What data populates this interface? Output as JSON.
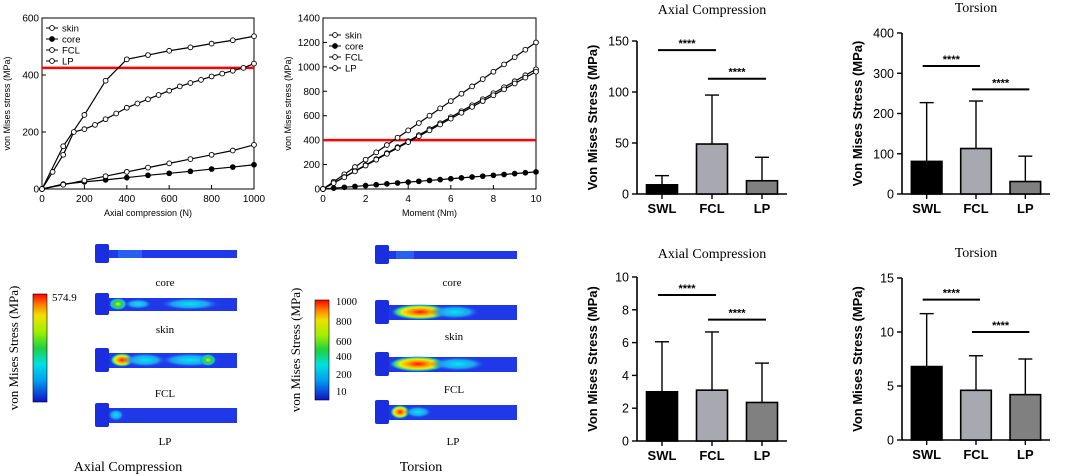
{
  "colors": {
    "red_line": "#ff0000",
    "black": "#000000",
    "bar_swl": "#000000",
    "bar_fcl": "#a8a8b0",
    "bar_lp": "#808080",
    "model_blue": "#1a2ee0"
  },
  "chart_data": [
    {
      "id": "line_axial",
      "type": "line",
      "xlabel": "Axial compression (N)",
      "ylabel": "von Mises stress (MPa)",
      "xlim": [
        0,
        1000
      ],
      "ylim": [
        0,
        600
      ],
      "xticks": [
        0,
        200,
        400,
        600,
        800,
        1000
      ],
      "yticks": [
        0,
        200,
        400,
        600
      ],
      "threshold": 425,
      "series": [
        {
          "name": "skin",
          "marker": "open",
          "x": [
            0,
            100,
            200,
            300,
            400,
            500,
            600,
            700,
            800,
            900,
            1000
          ],
          "y": [
            0,
            150,
            260,
            380,
            455,
            470,
            485,
            497,
            510,
            522,
            536
          ]
        },
        {
          "name": "core",
          "marker": "filled",
          "x": [
            0,
            100,
            200,
            300,
            400,
            500,
            600,
            700,
            800,
            900,
            1000
          ],
          "y": [
            0,
            17,
            25,
            32,
            40,
            48,
            55,
            62,
            70,
            77,
            85
          ]
        },
        {
          "name": "FCL",
          "marker": "open",
          "x": [
            0,
            100,
            200,
            300,
            400,
            500,
            600,
            700,
            800,
            900,
            1000
          ],
          "y": [
            0,
            15,
            30,
            45,
            60,
            75,
            90,
            105,
            120,
            135,
            155
          ]
        },
        {
          "name": "LP",
          "marker": "open",
          "x": [
            0,
            50,
            100,
            150,
            200,
            250,
            300,
            350,
            400,
            450,
            500,
            550,
            600,
            650,
            700,
            750,
            800,
            850,
            900,
            950,
            1000
          ],
          "y": [
            0,
            60,
            120,
            200,
            210,
            225,
            245,
            265,
            285,
            300,
            315,
            330,
            345,
            360,
            372,
            383,
            395,
            405,
            415,
            425,
            440
          ]
        }
      ]
    },
    {
      "id": "line_torsion",
      "type": "line",
      "xlabel": "Moment (Nm)",
      "ylabel": "von Mises stress (MPa)",
      "xlim": [
        0,
        10
      ],
      "ylim": [
        0,
        1400
      ],
      "xticks": [
        0,
        2,
        4,
        6,
        8,
        10
      ],
      "yticks": [
        0,
        200,
        400,
        600,
        800,
        1000,
        1200,
        1400
      ],
      "threshold": 400,
      "series": [
        {
          "name": "skin",
          "marker": "open",
          "x": [
            0,
            0.5,
            1,
            1.5,
            2,
            2.5,
            3,
            3.5,
            4,
            4.5,
            5,
            5.5,
            6,
            6.5,
            7,
            7.5,
            8,
            8.5,
            9,
            9.5,
            10
          ],
          "y": [
            0,
            60,
            120,
            180,
            240,
            300,
            360,
            420,
            480,
            540,
            600,
            660,
            720,
            780,
            840,
            900,
            960,
            1020,
            1080,
            1140,
            1200
          ]
        },
        {
          "name": "core",
          "marker": "filled",
          "x": [
            0,
            0.5,
            1,
            1.5,
            2,
            2.5,
            3,
            3.5,
            4,
            4.5,
            5,
            5.5,
            6,
            6.5,
            7,
            7.5,
            8,
            8.5,
            9,
            9.5,
            10
          ],
          "y": [
            0,
            7,
            14,
            21,
            28,
            35,
            42,
            49,
            56,
            63,
            70,
            77,
            84,
            91,
            98,
            105,
            112,
            119,
            126,
            133,
            140
          ]
        },
        {
          "name": "FCL",
          "marker": "open",
          "x": [
            0,
            0.5,
            1,
            1.5,
            2,
            2.5,
            3,
            3.5,
            4,
            4.5,
            5,
            5.5,
            6,
            6.5,
            7,
            7.5,
            8,
            8.5,
            9,
            9.5,
            10
          ],
          "y": [
            0,
            49,
            98,
            147,
            196,
            245,
            294,
            343,
            392,
            441,
            490,
            539,
            588,
            637,
            686,
            735,
            784,
            833,
            882,
            931,
            980
          ]
        },
        {
          "name": "LP",
          "marker": "open",
          "x": [
            0,
            0.5,
            1,
            1.5,
            2,
            2.5,
            3,
            3.5,
            4,
            4.5,
            5,
            5.5,
            6,
            6.5,
            7,
            7.5,
            8,
            8.5,
            9,
            9.5,
            10
          ],
          "y": [
            0,
            48,
            96,
            144,
            192,
            240,
            288,
            336,
            384,
            432,
            480,
            528,
            576,
            624,
            672,
            720,
            768,
            816,
            864,
            912,
            960
          ]
        }
      ]
    },
    {
      "id": "bar_axial_top",
      "type": "bar",
      "title": "Axial Compression",
      "ylabel": "Von Mises Stress (MPa)",
      "categories": [
        "SWL",
        "FCL",
        "LP"
      ],
      "values": [
        9,
        49,
        13
      ],
      "errors": [
        9,
        48,
        23
      ],
      "ylim": [
        0,
        150
      ],
      "yticks": [
        0,
        50,
        100,
        150
      ],
      "significance": [
        {
          "from": 0,
          "to": 1,
          "label": "****",
          "y": 141
        },
        {
          "from": 1,
          "to": 2,
          "label": "****",
          "y": 113
        }
      ]
    },
    {
      "id": "bar_torsion_top",
      "type": "bar",
      "title": "Torsion",
      "ylabel": "Von Mises Stress (MPa)",
      "categories": [
        "SWL",
        "FCL",
        "LP"
      ],
      "values": [
        81,
        113,
        31
      ],
      "errors": [
        146,
        118,
        63
      ],
      "ylim": [
        0,
        400
      ],
      "yticks": [
        0,
        100,
        200,
        300,
        400
      ],
      "significance": [
        {
          "from": 0,
          "to": 1,
          "label": "****",
          "y": 318
        },
        {
          "from": 1,
          "to": 2,
          "label": "****",
          "y": 260
        }
      ]
    },
    {
      "id": "bar_axial_bottom",
      "type": "bar",
      "title": "Axial Compression",
      "ylabel": "Von Mises Stress (MPa)",
      "categories": [
        "SWL",
        "FCL",
        "LP"
      ],
      "values": [
        3.0,
        3.1,
        2.35
      ],
      "errors": [
        3.05,
        3.55,
        2.4
      ],
      "ylim": [
        0,
        10
      ],
      "yticks": [
        0,
        2,
        4,
        6,
        8,
        10
      ],
      "significance": [
        {
          "from": 0,
          "to": 1,
          "label": "****",
          "y": 8.9
        },
        {
          "from": 1,
          "to": 2,
          "label": "****",
          "y": 7.4
        }
      ]
    },
    {
      "id": "bar_torsion_bottom",
      "type": "bar",
      "title": "Torsion",
      "ylabel": "Von Mises Stress (MPa)",
      "categories": [
        "SWL",
        "FCL",
        "LP"
      ],
      "values": [
        6.8,
        4.6,
        4.2
      ],
      "errors": [
        4.9,
        3.2,
        3.3
      ],
      "ylim": [
        0,
        15
      ],
      "yticks": [
        0,
        5,
        10,
        15
      ],
      "significance": [
        {
          "from": 0,
          "to": 1,
          "label": "****",
          "y": 13
        },
        {
          "from": 1,
          "to": 2,
          "label": "****",
          "y": 10
        }
      ]
    }
  ],
  "fea_panels": [
    {
      "id": "fea_axial",
      "caption": "Axial Compression",
      "legend_title": "von Mises Stress (MPa)",
      "legend_max_label": "574.9",
      "models": [
        "core",
        "skin",
        "FCL",
        "LP"
      ]
    },
    {
      "id": "fea_torsion",
      "caption": "Torsion",
      "legend_title": "von Mises Stress (MPa)",
      "legend_labels": [
        "1000",
        "800",
        "600",
        "400",
        "200",
        "10"
      ],
      "models": [
        "core",
        "skin",
        "FCL",
        "LP"
      ]
    }
  ]
}
